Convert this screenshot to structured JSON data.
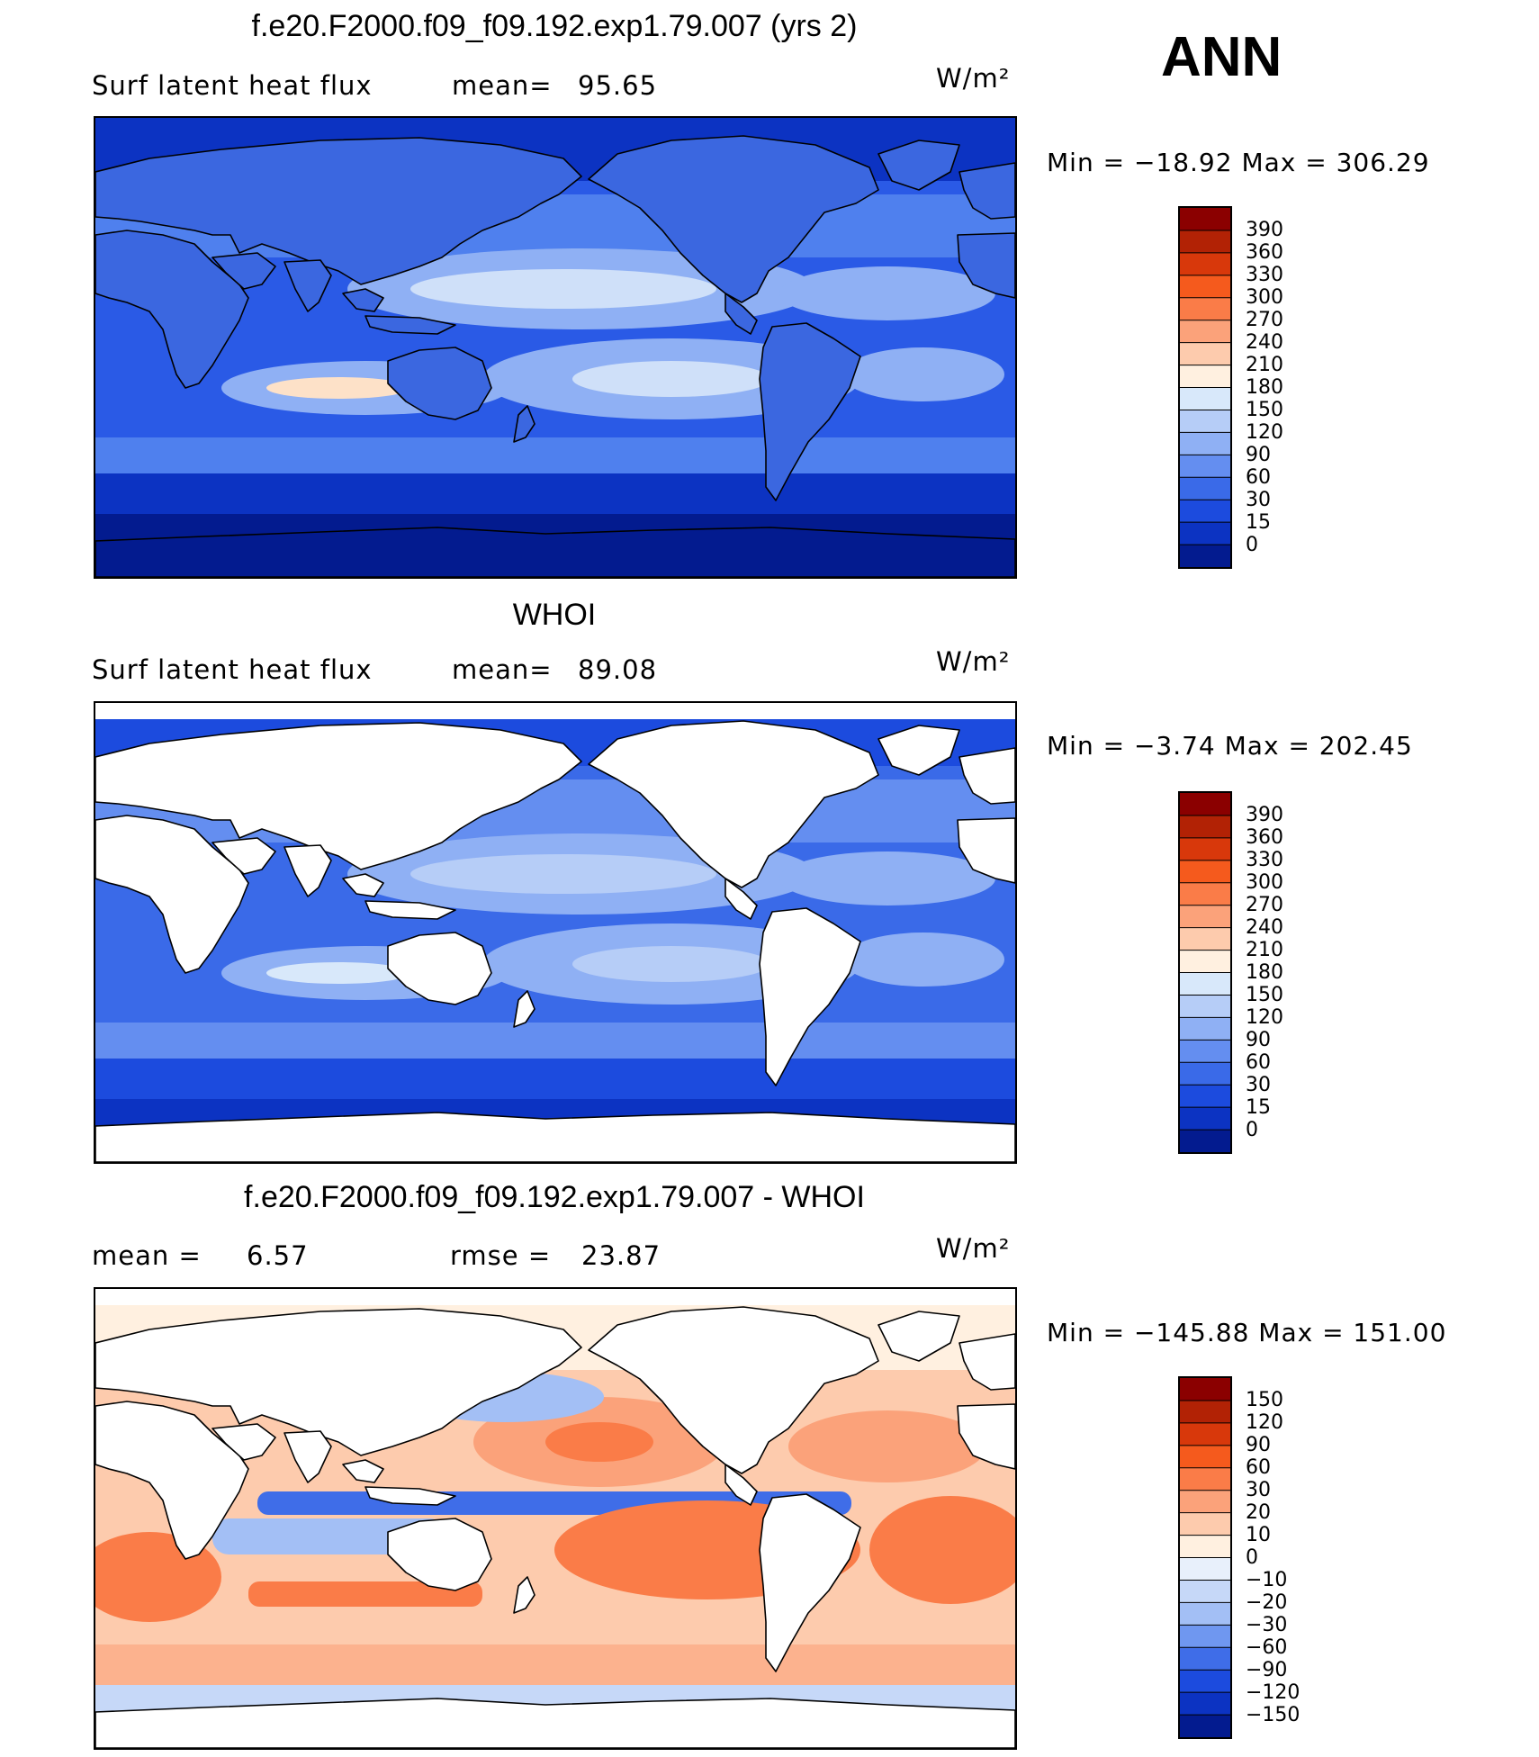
{
  "header": {
    "season": "ANN"
  },
  "panels": [
    {
      "title": "f.e20.F2000.f09_f09.192.exp1.79.007 (yrs 2)",
      "left_label": "Surf latent heat flux",
      "mid_label": "mean=",
      "mid_value": "95.65",
      "units": "W/m²",
      "minmax": "Min = −18.92 Max = 306.29",
      "style": "model"
    },
    {
      "title": "WHOI",
      "left_label": "Surf latent heat flux",
      "mid_label": "mean=",
      "mid_value": "89.08",
      "units": "W/m²",
      "minmax": "Min =  −3.74 Max = 202.45",
      "style": "obs"
    },
    {
      "title": "f.e20.F2000.f09_f09.192.exp1.79.007 - WHOI",
      "left_label": "mean =",
      "left_value": "6.57",
      "mid_label": "rmse =",
      "mid_value": "23.87",
      "units": "W/m²",
      "minmax": "Min = −145.88 Max = 151.00",
      "style": "diff"
    }
  ],
  "chart_data": [
    {
      "type": "heatmap",
      "title": "f.e20.F2000.f09_f09.192.exp1.79.007 (yrs 2)",
      "variable": "Surf latent heat flux",
      "units": "W/m²",
      "mean": 95.65,
      "min": -18.92,
      "max": 306.29,
      "colorbar_levels": [
        "390",
        "360",
        "330",
        "300",
        "270",
        "240",
        "210",
        "180",
        "150",
        "120",
        "90",
        "60",
        "30",
        "15",
        "0"
      ],
      "colorbar_colors": [
        "#8b0000",
        "#b22205",
        "#d8380b",
        "#f55a1d",
        "#fa7c48",
        "#fba27a",
        "#fdcbad",
        "#fff0e0",
        "#d8e8fa",
        "#b6cdf7",
        "#8fb0f4",
        "#648ef0",
        "#3a6ae8",
        "#1c4bde",
        "#0c33c2",
        "#031b8f"
      ]
    },
    {
      "type": "heatmap",
      "title": "WHOI",
      "variable": "Surf latent heat flux",
      "units": "W/m²",
      "mean": 89.08,
      "min": -3.74,
      "max": 202.45,
      "colorbar_levels": [
        "390",
        "360",
        "330",
        "300",
        "270",
        "240",
        "210",
        "180",
        "150",
        "120",
        "90",
        "60",
        "30",
        "15",
        "0"
      ],
      "colorbar_colors": [
        "#8b0000",
        "#b22205",
        "#d8380b",
        "#f55a1d",
        "#fa7c48",
        "#fba27a",
        "#fdcbad",
        "#fff0e0",
        "#d8e8fa",
        "#b6cdf7",
        "#8fb0f4",
        "#648ef0",
        "#3a6ae8",
        "#1c4bde",
        "#0c33c2",
        "#031b8f"
      ]
    },
    {
      "type": "heatmap",
      "title": "f.e20.F2000.f09_f09.192.exp1.79.007 - WHOI",
      "units": "W/m²",
      "mean": 6.57,
      "rmse": 23.87,
      "min": -145.88,
      "max": 151.0,
      "colorbar_levels": [
        "150",
        "120",
        "90",
        "60",
        "30",
        "20",
        "10",
        "0",
        "−10",
        "−20",
        "−30",
        "−60",
        "−90",
        "−120",
        "−150"
      ],
      "colorbar_colors": [
        "#8b0000",
        "#b22205",
        "#d8380b",
        "#f55a1d",
        "#fa7c48",
        "#fba27a",
        "#fdcbad",
        "#fff0e0",
        "#e8f0fb",
        "#c6d8f8",
        "#a3bff5",
        "#6f97f0",
        "#3f6de8",
        "#1c4bde",
        "#0c33c2",
        "#031b8f"
      ]
    }
  ]
}
